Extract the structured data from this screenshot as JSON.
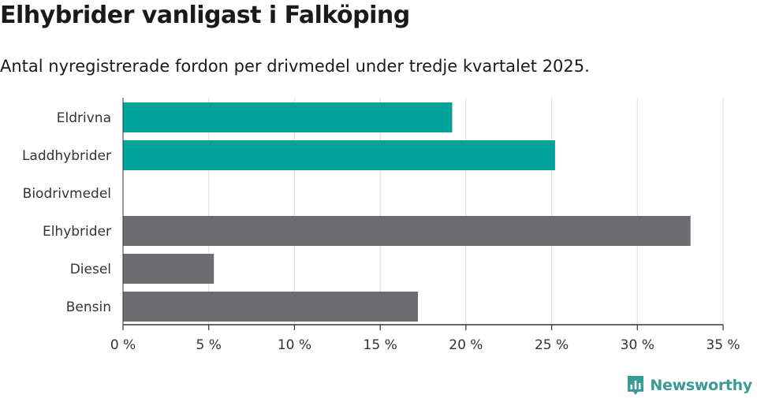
{
  "title": "Elhybrider vanligast i Falköping",
  "subtitle": "Antal nyregistrerade fordon per drivmedel under tredje kvartalet 2025.",
  "brand": {
    "name": "Newsworthy",
    "icon": "newsworthy-logo-icon"
  },
  "colors": {
    "highlight": "#00a49a",
    "default": "#6d6c71",
    "grid": "#dddddd",
    "axis": "#333333"
  },
  "chart_data": {
    "type": "bar",
    "orientation": "horizontal",
    "title": "Elhybrider vanligast i Falköping",
    "subtitle": "Antal nyregistrerade fordon per drivmedel under tredje kvartalet 2025.",
    "categories": [
      "Eldrivna",
      "Laddhybrider",
      "Biodrivmedel",
      "Elhybrider",
      "Diesel",
      "Bensin"
    ],
    "values": [
      19.2,
      25.2,
      0,
      33.1,
      5.3,
      17.2
    ],
    "highlighted": [
      true,
      true,
      false,
      false,
      false,
      false
    ],
    "xlim": [
      0,
      35
    ],
    "xticks": [
      0,
      5,
      10,
      15,
      20,
      25,
      30,
      35
    ],
    "xtick_labels": [
      "0 %",
      "5 %",
      "10 %",
      "15 %",
      "20 %",
      "25 %",
      "30 %",
      "35 %"
    ],
    "xlabel": "",
    "ylabel": "",
    "grid": true,
    "legend": false
  }
}
